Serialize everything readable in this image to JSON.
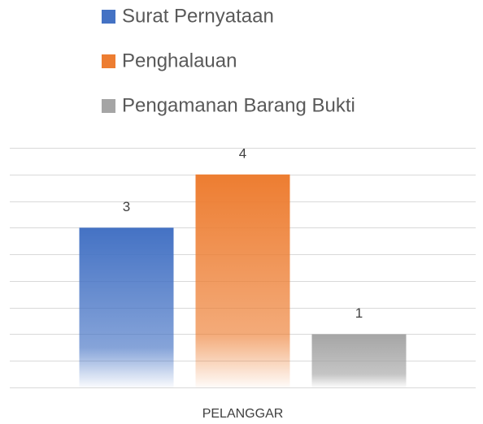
{
  "chart_data": {
    "type": "bar",
    "categories": [
      "PELANGGAR"
    ],
    "series": [
      {
        "name": "Surat Pernyataan",
        "color": "#4472c4",
        "values": [
          3
        ]
      },
      {
        "name": "Penghalauan",
        "color": "#ed7d31",
        "values": [
          4
        ]
      },
      {
        "name": "Pengamanan Barang Bukti",
        "color": "#a5a5a5",
        "values": [
          1
        ]
      }
    ],
    "ylim": [
      0,
      4.5
    ],
    "yticks": [
      0,
      0.5,
      1,
      1.5,
      2,
      2.5,
      3,
      3.5,
      4,
      4.5
    ],
    "grid": true,
    "legend": "top"
  }
}
